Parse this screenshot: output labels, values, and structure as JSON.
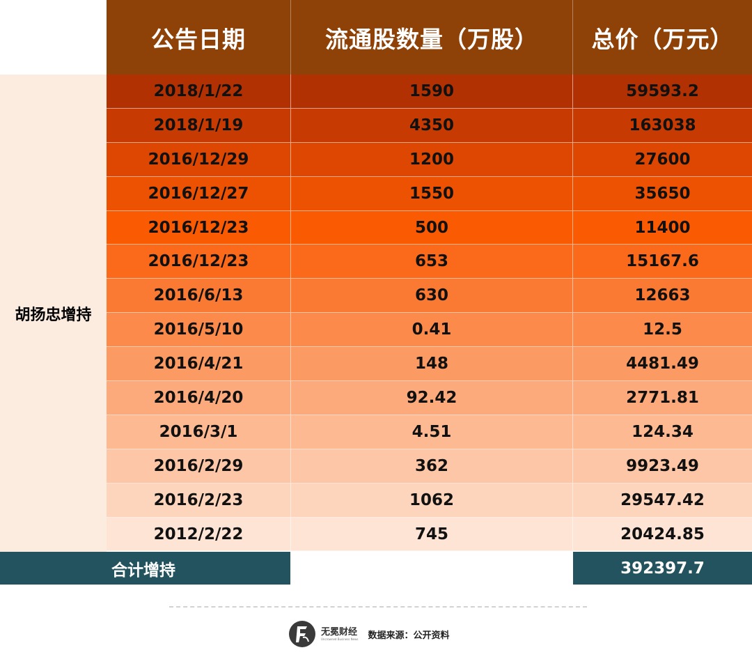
{
  "header": {
    "col_date": "公告日期",
    "col_shares": "流通股数量（万股）",
    "col_total": "总价（万元）"
  },
  "side_label": "胡扬忠增持",
  "rows": [
    {
      "date": "2018/1/22",
      "shares": "1590",
      "total": "59593.2",
      "color": "#b23103"
    },
    {
      "date": "2018/1/19",
      "shares": "4350",
      "total": "163038",
      "color": "#c73b02"
    },
    {
      "date": "2016/12/29",
      "shares": "1200",
      "total": "27600",
      "color": "#dd4701"
    },
    {
      "date": "2016/12/27",
      "shares": "1550",
      "total": "35650",
      "color": "#ec5201"
    },
    {
      "date": "2016/12/23",
      "shares": "500",
      "total": "11400",
      "color": "#fa5a02"
    },
    {
      "date": "2016/12/23",
      "shares": "653",
      "total": "15167.6",
      "color": "#fb6a1b"
    },
    {
      "date": "2016/6/13",
      "shares": "630",
      "total": "12663",
      "color": "#fb7a33"
    },
    {
      "date": "2016/5/10",
      "shares": "0.41",
      "total": "12.5",
      "color": "#fb8a4b"
    },
    {
      "date": "2016/4/21",
      "shares": "148",
      "total": "4481.49",
      "color": "#fb9a63"
    },
    {
      "date": "2016/4/20",
      "shares": "92.42",
      "total": "2771.81",
      "color": "#fcaa7b"
    },
    {
      "date": "2016/3/1",
      "shares": "4.51",
      "total": "124.34",
      "color": "#fcb992"
    },
    {
      "date": "2016/2/29",
      "shares": "362",
      "total": "9923.49",
      "color": "#fdc6a6"
    },
    {
      "date": "2016/2/23",
      "shares": "1062",
      "total": "29547.42",
      "color": "#fdd5bd"
    },
    {
      "date": "2012/2/22",
      "shares": "745",
      "total": "20424.85",
      "color": "#fde4d4"
    }
  ],
  "total": {
    "label": "合计增持",
    "value": "392397.7"
  },
  "footer": {
    "brand": "无冕财经",
    "brand_sub": "Uncrowned Business News",
    "source": "数据来源：公开资料"
  },
  "colors": {
    "header_bg": "#8f4208",
    "total_bg": "#22535f",
    "side_bg": "#fcebdf"
  }
}
